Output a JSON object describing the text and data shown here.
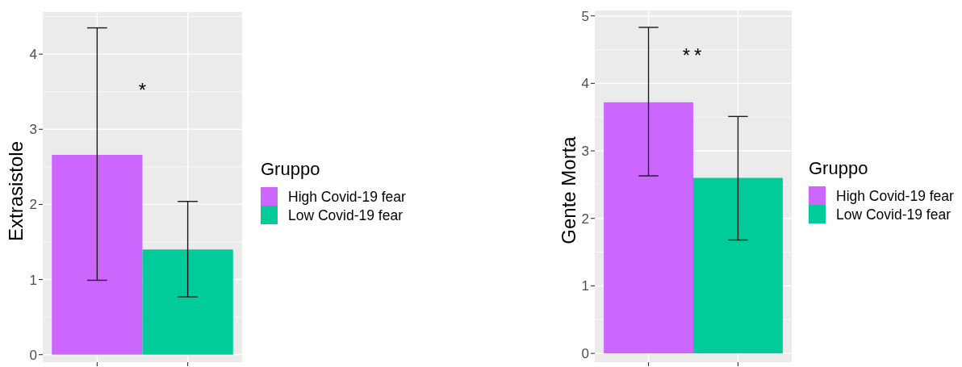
{
  "chart_data": [
    {
      "type": "bar",
      "ylabel": "Extrasistole",
      "legend_title": "Gruppo",
      "categories": [
        null,
        null
      ],
      "series": [
        {
          "name": "High Covid-19 fear",
          "color": "#cc66ff",
          "values": [
            2.66,
            null
          ],
          "errors": [
            [
              0.99,
              4.35
            ],
            null
          ]
        },
        {
          "name": "Low Covid-19 fear",
          "color": "#00cc99",
          "values": [
            null,
            1.4
          ],
          "errors": [
            null,
            [
              0.77,
              2.04
            ]
          ]
        }
      ],
      "ylim": [
        -0.1,
        4.56
      ],
      "yticks": [
        0,
        1,
        2,
        3,
        4
      ],
      "grid": true,
      "legend": "right",
      "annotations": [
        "*"
      ]
    },
    {
      "type": "bar",
      "ylabel": "Gente Morta",
      "legend_title": "Gruppo",
      "categories": [
        null,
        null
      ],
      "series": [
        {
          "name": "High Covid-19 fear",
          "color": "#cc66ff",
          "values": [
            3.72,
            null
          ],
          "errors": [
            [
              2.63,
              4.83
            ],
            null
          ]
        },
        {
          "name": "Low Covid-19 fear",
          "color": "#00cc99",
          "values": [
            null,
            2.6
          ],
          "errors": [
            null,
            [
              1.68,
              3.51
            ]
          ]
        }
      ],
      "ylim": [
        -0.13,
        5.08
      ],
      "yticks": [
        0,
        1,
        2,
        3,
        4,
        5
      ],
      "grid": true,
      "legend": "right",
      "annotations": [
        "**"
      ]
    }
  ]
}
